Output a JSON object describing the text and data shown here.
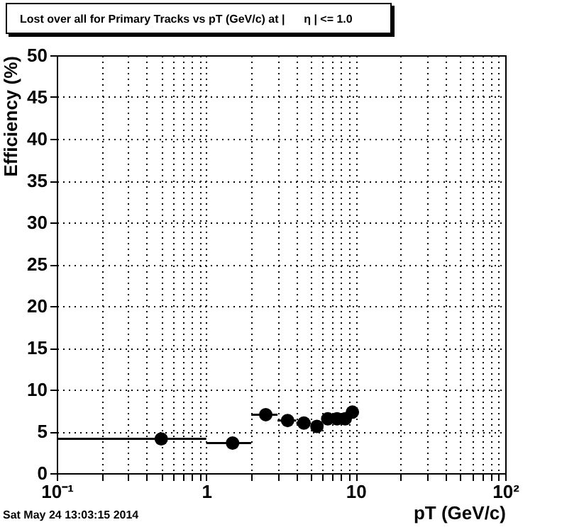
{
  "chart_data": {
    "type": "scatter",
    "title": "Lost over all for Primary Tracks vs pT (GeV/c) at |      η | <= 1.0",
    "xlabel": "pT (GeV/c)",
    "ylabel": "Efficiency (%)",
    "x": [
      0.5,
      1.5,
      2.5,
      3.5,
      4.5,
      5.5,
      6.5,
      7.5,
      8.5,
      9.5
    ],
    "values": [
      4.1,
      3.6,
      7.0,
      6.3,
      6.0,
      5.6,
      6.5,
      6.5,
      6.5,
      7.3
    ],
    "xerrors": [
      [
        0.1,
        1
      ],
      [
        1,
        2
      ],
      [
        2,
        3
      ],
      [
        3,
        4
      ],
      [
        4,
        5
      ],
      [
        5,
        6
      ],
      null,
      null,
      null,
      [
        9,
        10
      ]
    ],
    "color": "#000000",
    "marker": "circle",
    "log": "x",
    "grid": true,
    "xlim": [
      0.1,
      100
    ],
    "ylim": [
      0,
      50
    ],
    "xticks": [
      {
        "value": 0.1,
        "label": "10⁻¹"
      },
      {
        "value": 0.2,
        "label": null
      },
      {
        "value": 0.3,
        "label": null
      },
      {
        "value": 0.4,
        "label": null
      },
      {
        "value": 0.5,
        "label": null
      },
      {
        "value": 0.6,
        "label": null
      },
      {
        "value": 0.7,
        "label": null
      },
      {
        "value": 0.8,
        "label": null
      },
      {
        "value": 0.9,
        "label": null
      },
      1,
      {
        "value": 2,
        "label": null
      },
      {
        "value": 3,
        "label": null
      },
      {
        "value": 4,
        "label": null
      },
      {
        "value": 5,
        "label": null
      },
      {
        "value": 6,
        "label": null
      },
      {
        "value": 7,
        "label": null
      },
      {
        "value": 8,
        "label": null
      },
      {
        "value": 9,
        "label": null
      },
      10,
      {
        "value": 20,
        "label": null
      },
      {
        "value": 30,
        "label": null
      },
      {
        "value": 40,
        "label": null
      },
      {
        "value": 50,
        "label": null
      },
      {
        "value": 60,
        "label": null
      },
      {
        "value": 70,
        "label": null
      },
      {
        "value": 80,
        "label": null
      },
      {
        "value": 90,
        "label": null
      },
      {
        "value": 100,
        "label": "10²"
      }
    ],
    "yticks": [
      0,
      5,
      10,
      15,
      20,
      25,
      30,
      35,
      40,
      45,
      50
    ],
    "annotations": [
      "Sat May 24 13:03:15 2014"
    ]
  }
}
